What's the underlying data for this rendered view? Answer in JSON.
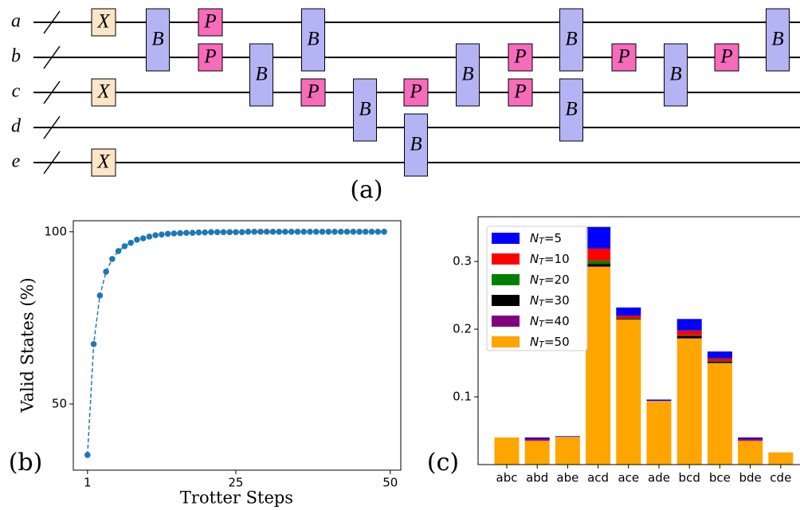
{
  "circuit": {
    "wires": [
      "a",
      "b",
      "c",
      "d",
      "e"
    ],
    "gates": [
      "X",
      "X",
      "X",
      "B",
      "P",
      "P",
      "B",
      "B",
      "P",
      "B",
      "P",
      "B",
      "B",
      "P",
      "P",
      "B",
      "B",
      "P",
      "B",
      "P",
      "B"
    ],
    "caption": "(a)"
  },
  "chart_data": [
    {
      "type": "line",
      "caption": "(b)",
      "xlabel": "Trotter Steps",
      "ylabel": "Valid States (%)",
      "x": [
        1,
        2,
        3,
        4,
        5,
        6,
        7,
        8,
        9,
        10,
        11,
        12,
        13,
        14,
        15,
        16,
        17,
        18,
        19,
        20,
        21,
        22,
        23,
        24,
        25,
        26,
        27,
        28,
        29,
        30,
        31,
        32,
        33,
        34,
        35,
        36,
        37,
        38,
        39,
        40,
        41,
        42,
        43,
        44,
        45,
        46,
        47,
        48,
        49
      ],
      "series": [
        {
          "color": "#1f77b4",
          "values": [
            35.2,
            67.4,
            81.5,
            88.4,
            92.1,
            94.4,
            95.8,
            96.8,
            97.7,
            98.1,
            98.6,
            99.0,
            99.2,
            99.4,
            99.5,
            99.6,
            99.7,
            99.7,
            99.8,
            99.8,
            99.9,
            99.9,
            99.9,
            99.9,
            99.9,
            99.9,
            100,
            100,
            100,
            100,
            100,
            100,
            100,
            100,
            100,
            100,
            100,
            100,
            100,
            100,
            100,
            100,
            100,
            100,
            100,
            100,
            100,
            100,
            100
          ]
        }
      ],
      "xlim": [
        -1.3,
        51.7
      ],
      "ylim": [
        30.8,
        103.2
      ],
      "xticks": [
        1,
        25,
        50
      ],
      "yticks": [
        50,
        100
      ]
    },
    {
      "type": "stacked_bar",
      "caption": "(c)",
      "categories": [
        "abc",
        "abd",
        "abe",
        "acd",
        "ace",
        "ade",
        "bcd",
        "bce",
        "bde",
        "cde"
      ],
      "series": [
        {
          "name": "NT=5",
          "color": "#0000ff",
          "values": [
            0,
            0.003,
            0.001,
            0.032,
            0.012,
            0.002,
            0.017,
            0.01,
            0.003,
            0
          ]
        },
        {
          "name": "NT=10",
          "color": "#ff0000",
          "values": [
            0,
            0.002,
            0,
            0.018,
            0.004,
            0,
            0.007,
            0.004,
            0.002,
            0
          ]
        },
        {
          "name": "NT=20",
          "color": "#008000",
          "values": [
            0,
            0,
            0,
            0.005,
            0.001,
            0,
            0.001,
            0.001,
            0,
            0
          ]
        },
        {
          "name": "NT=30",
          "color": "#000000",
          "values": [
            0,
            0,
            0,
            0.003,
            0.001,
            0,
            0.003,
            0.002,
            0,
            0
          ]
        },
        {
          "name": "NT=40",
          "color": "#800080",
          "values": [
            0,
            0,
            0,
            0.001,
            0,
            0,
            0.001,
            0,
            0,
            0
          ]
        },
        {
          "name": "NT=50",
          "color": "#ffa500",
          "values": [
            0.04,
            0.035,
            0.041,
            0.292,
            0.214,
            0.094,
            0.186,
            0.15,
            0.035,
            0.018
          ]
        }
      ],
      "ylim": [
        0,
        0.366
      ],
      "yticks": [
        0.1,
        0.2,
        0.3
      ],
      "legend": "upper left"
    }
  ]
}
